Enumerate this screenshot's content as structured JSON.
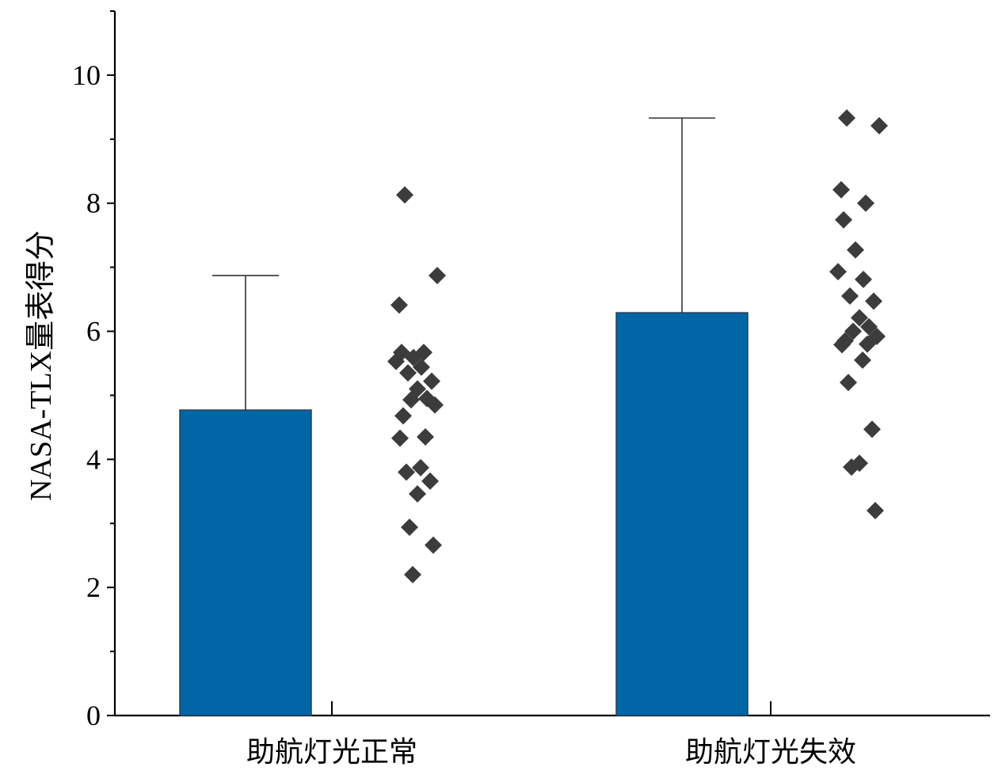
{
  "chart_data": {
    "type": "bar",
    "categories": [
      "助航灯光正常",
      "助航灯光失效"
    ],
    "values": [
      4.77,
      6.29
    ],
    "error_upper": [
      6.87,
      9.33
    ],
    "ylabel": "NASA-TLX量表得分",
    "ylim": [
      0,
      11
    ],
    "yticks": [
      0,
      2,
      4,
      6,
      8,
      10
    ],
    "ytick_labels": [
      "0",
      "2",
      "4",
      "6",
      "8",
      "10"
    ],
    "grid": false,
    "bar_color": "#0066a6",
    "point_color": "#3c3c3c",
    "points": [
      [
        8.13,
        6.87,
        6.41,
        5.67,
        5.67,
        5.59,
        5.53,
        5.44,
        5.35,
        5.22,
        5.1,
        4.95,
        4.93,
        4.85,
        4.68,
        4.35,
        4.33,
        3.87,
        3.8,
        3.66,
        3.46,
        2.94,
        2.66,
        2.2
      ],
      [
        9.33,
        9.21,
        8.21,
        8.0,
        7.74,
        7.27,
        6.93,
        6.81,
        6.55,
        6.47,
        6.21,
        6.07,
        6.0,
        5.92,
        5.85,
        5.8,
        5.79,
        5.55,
        5.2,
        4.47,
        3.94,
        3.88,
        3.2
      ]
    ]
  }
}
